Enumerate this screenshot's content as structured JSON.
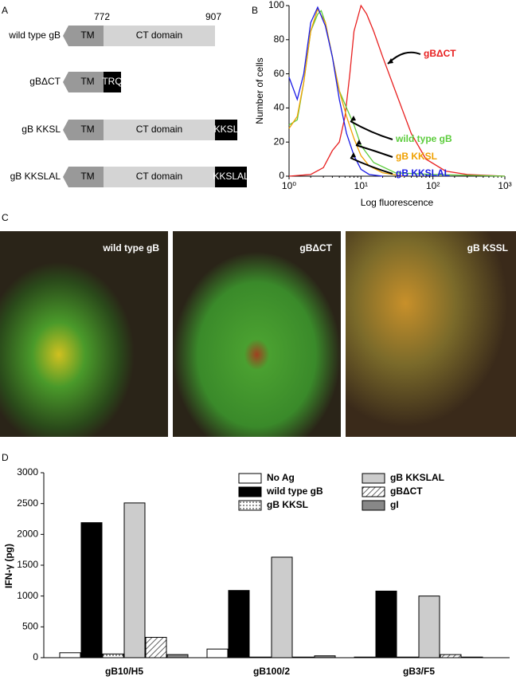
{
  "panel_labels": [
    "A",
    "B",
    "C",
    "D"
  ],
  "diagram": {
    "positions": [
      "772",
      "907"
    ],
    "constructs": [
      {
        "name": "wild type gB",
        "tm": "TM",
        "ct": "CT domain"
      },
      {
        "name": "gBΔCT",
        "tm": "TM",
        "tail": "TRQ"
      },
      {
        "name": "gB KKSL",
        "tm": "TM",
        "ct": "CT domain",
        "tail": "KKSL"
      },
      {
        "name": "gB KKSLAL",
        "tm": "TM",
        "ct": "CT domain",
        "tail": "KKSLAL"
      }
    ]
  },
  "images": {
    "titles": [
      "wild type gB",
      "gBΔCT",
      "gB KSSL"
    ]
  },
  "chart_data": [
    {
      "type": "line",
      "xlabel": "Log fluorescence",
      "ylabel": "Number of cells",
      "log_x": true,
      "xlim": [
        1,
        1000
      ],
      "xticks": [
        {
          "value": 1,
          "label": "10⁰"
        },
        {
          "value": 10,
          "label": "10¹"
        },
        {
          "value": 100,
          "label": "10²"
        },
        {
          "value": 1000,
          "label": "10³"
        }
      ],
      "ylim": [
        0,
        100
      ],
      "yticks": [
        0,
        20,
        40,
        60,
        80,
        100
      ],
      "series": [
        {
          "name": "gBΔCT",
          "color": "#e82020",
          "x": [
            1,
            2,
            3,
            4,
            5,
            6,
            7,
            8,
            10,
            12,
            15,
            20,
            30,
            50,
            80,
            150,
            300,
            1000
          ],
          "values": [
            0,
            1,
            5,
            15,
            20,
            35,
            60,
            85,
            100,
            95,
            85,
            70,
            50,
            25,
            10,
            3,
            1,
            0
          ]
        },
        {
          "name": "wild type gB",
          "color": "#5ccc3c",
          "x": [
            1,
            1.3,
            1.6,
            2,
            2.5,
            2.8,
            3.2,
            4,
            5,
            6.3,
            8,
            10,
            15,
            30,
            100,
            1000
          ],
          "values": [
            30,
            33,
            55,
            85,
            95,
            97,
            90,
            70,
            50,
            40,
            30,
            18,
            8,
            2,
            1,
            0
          ]
        },
        {
          "name": "gB KKSL",
          "color": "#f0a000",
          "x": [
            1,
            1.3,
            1.6,
            2,
            2.5,
            3.2,
            4,
            5,
            6.3,
            8,
            10,
            13,
            20,
            40
          ],
          "values": [
            28,
            35,
            55,
            85,
            98,
            90,
            70,
            50,
            35,
            22,
            12,
            6,
            2,
            0
          ]
        },
        {
          "name": "gB KKSLAL",
          "color": "#1a1ae6",
          "x": [
            1,
            1.3,
            1.6,
            2,
            2.5,
            3.2,
            4,
            5,
            6.3,
            8,
            10,
            13,
            20
          ],
          "values": [
            58,
            45,
            60,
            90,
            99,
            88,
            70,
            45,
            25,
            12,
            4,
            1,
            0
          ]
        }
      ]
    },
    {
      "type": "bar",
      "ylabel": "IFN-γ (pg)",
      "categories": [
        "gB10/H5",
        "gB100/2",
        "gB3/F5"
      ],
      "ylim": [
        0,
        3000
      ],
      "yticks": [
        0,
        500,
        1000,
        1500,
        2000,
        2500,
        3000
      ],
      "series": [
        {
          "name": "No Ag",
          "color": "#ffffff",
          "values": [
            80,
            140,
            10
          ]
        },
        {
          "name": "wild type gB",
          "color": "#000000",
          "values": [
            2190,
            1090,
            1080
          ]
        },
        {
          "name": "gB KKSL",
          "color": "#ffffff",
          "fill": "dots",
          "values": [
            60,
            10,
            10
          ]
        },
        {
          "name": "gB KKSLAL",
          "color": "#cccccc",
          "values": [
            2510,
            1630,
            1000
          ]
        },
        {
          "name": "gBΔCT",
          "color": "#ffffff",
          "fill": "hatch",
          "values": [
            330,
            10,
            50
          ]
        },
        {
          "name": "gI",
          "color": "#888888",
          "values": [
            50,
            30,
            10
          ]
        }
      ]
    }
  ]
}
